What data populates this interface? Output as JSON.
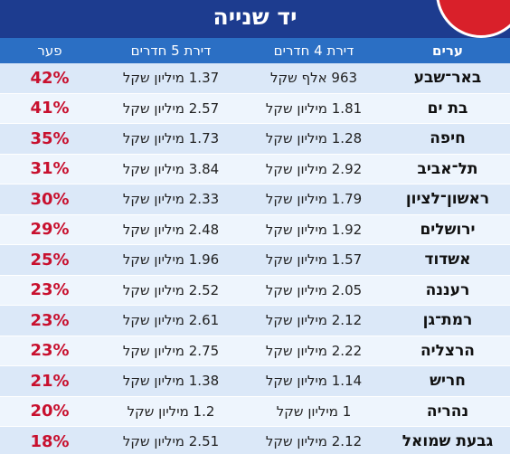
{
  "title": "יד שנייה",
  "headers": {
    "city": "ערים",
    "four_rooms": "דירת 4 חדרים",
    "five_rooms": "דירת 5 חדרים",
    "gap": "פער"
  },
  "rows": [
    {
      "city": "באר־שבע",
      "four": "963 אלף שקל",
      "five": "1.37 מיליון שקל",
      "gap": "42%"
    },
    {
      "city": "בת ים",
      "four": "1.81 מיליון שקל",
      "five": "2.57 מיליון שקל",
      "gap": "41%"
    },
    {
      "city": "חיפה",
      "four": "1.28 מיליון שקל",
      "five": "1.73 מיליון שקל",
      "gap": "35%"
    },
    {
      "city": "תל־אביב",
      "four": "2.92 מיליון שקל",
      "five": "3.84 מיליון שקל",
      "gap": "31%"
    },
    {
      "city": "ראשון־לציון",
      "four": "1.79 מיליון שקל",
      "five": "2.33 מיליון שקל",
      "gap": "30%"
    },
    {
      "city": "ירושלים",
      "four": "1.92 מיליון שקל",
      "five": "2.48 מיליון שקל",
      "gap": "29%"
    },
    {
      "city": "אשדוד",
      "four": "1.57 מיליון שקל",
      "five": "1.96 מיליון שקל",
      "gap": "25%"
    },
    {
      "city": "רעננה",
      "four": "2.05 מיליון שקל",
      "five": "2.52 מיליון שקל",
      "gap": "23%"
    },
    {
      "city": "רמת־גן",
      "four": "2.12 מיליון שקל",
      "five": "2.61 מיליון שקל",
      "gap": "23%"
    },
    {
      "city": "הרצליה",
      "four": "2.22 מיליון שקל",
      "five": "2.75 מיליון שקל",
      "gap": "23%"
    },
    {
      "city": "חריש",
      "four": "1.14 מיליון שקל",
      "five": "1.38 מיליון שקל",
      "gap": "21%"
    },
    {
      "city": "נהריה",
      "four": "1 מיליון שקל",
      "five": "1.2 מיליון שקל",
      "gap": "20%"
    },
    {
      "city": "גבעת שמואל",
      "four": "2.12 מיליון שקל",
      "five": "2.51 מיליון שקל",
      "gap": "18%"
    }
  ],
  "colors": {
    "title_bg": "#1d3c8f",
    "header_bg": "#2b6fc4",
    "row_odd": "#dbe8f8",
    "row_even": "#eef5fd",
    "gap_text": "#c8102e",
    "corner_accent": "#d9202a"
  }
}
